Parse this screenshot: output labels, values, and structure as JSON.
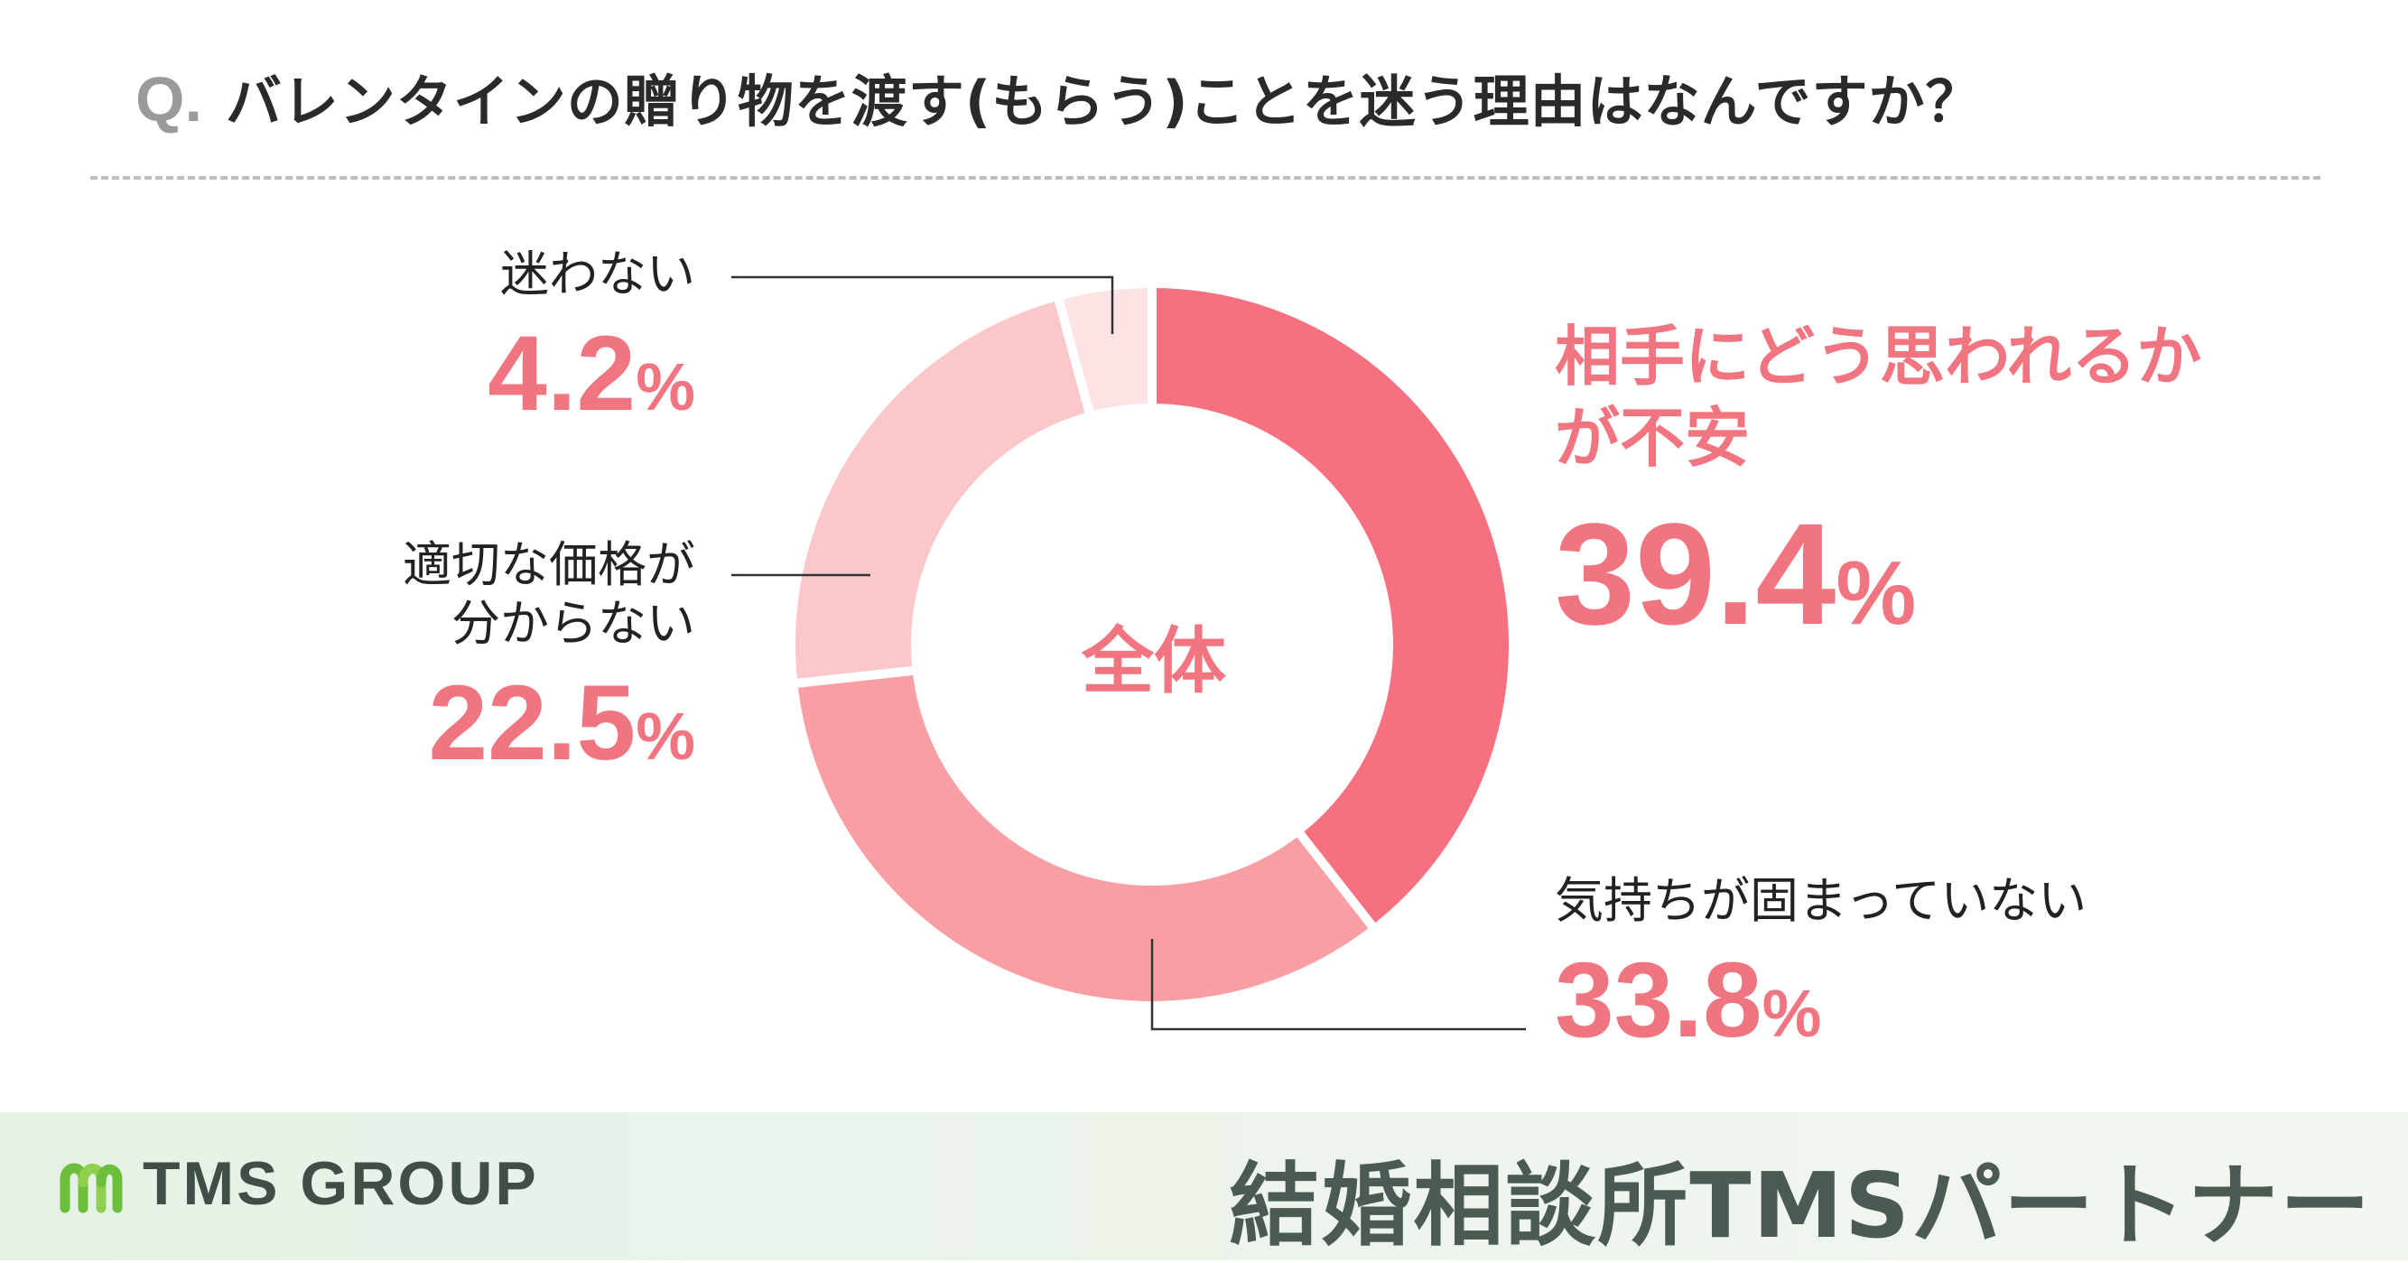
{
  "question": {
    "mark": "Q.",
    "text": "バレンタインの贈り物を渡す(もらう)ことを迷う理由はなんですか？"
  },
  "colors": {
    "accent": "#f07580",
    "slice_1": "#f6707f",
    "slice_2": "#f99ea2",
    "slice_3": "#fbc7c8",
    "slice_4": "#fde3e3"
  },
  "chart_data": {
    "type": "pie",
    "variant": "donut",
    "center_label": "全体",
    "unit": "%",
    "slices": [
      {
        "label_line1": "相手にどう思われるか",
        "label_line2": "が不安",
        "value": 39.4
      },
      {
        "label_line1": "気持ちが固まっていない",
        "label_line2": "",
        "value": 33.8
      },
      {
        "label_line1": "適切な価格が",
        "label_line2": "分からない",
        "value": 22.5
      },
      {
        "label_line1": "迷わない",
        "label_line2": "",
        "value": 4.2
      }
    ]
  },
  "footer": {
    "logo_text": "TMS GROUP",
    "brand": "結婚相談所TMSパートナー"
  }
}
